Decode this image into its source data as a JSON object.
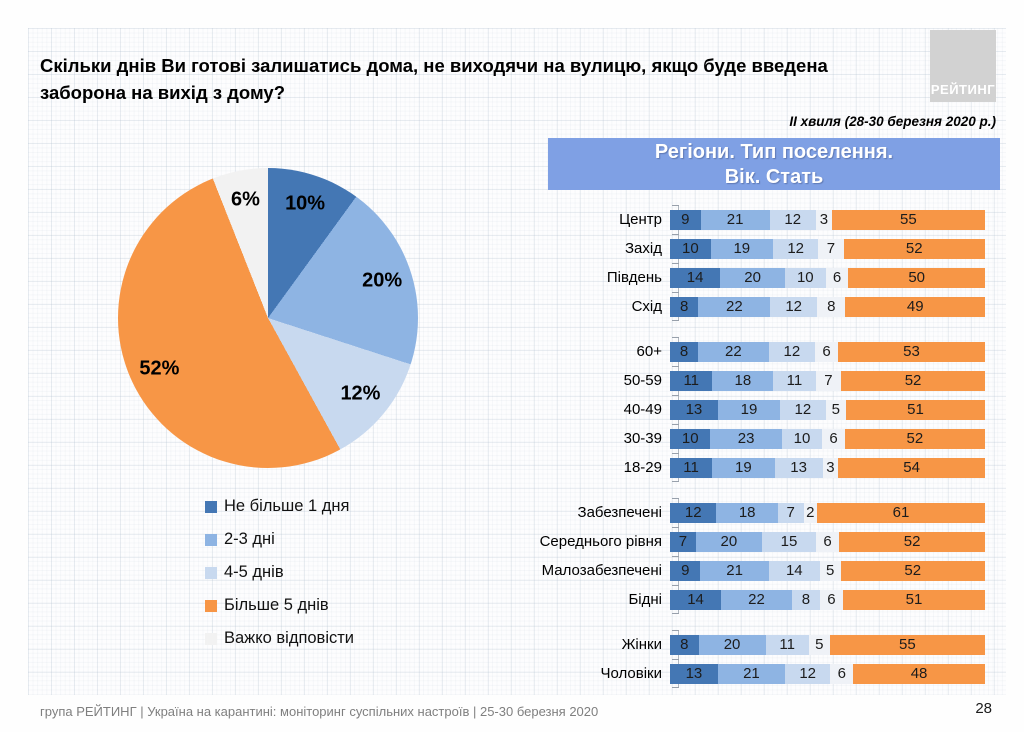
{
  "slide": {
    "title": "Скільки днів Ви готові залишатись дома, не виходячи на вулицю, якщо буде введена заборона на вихід з дому?",
    "wave_label": "ІІ хвиля (28-30 березня 2020 р.)",
    "panel_title_line1": "Регіони. Тип поселення.",
    "panel_title_line2": "Вік. Стать",
    "logo_text": "РЕЙТИНГ",
    "footer": "група РЕЙТИНГ  |  Україна на карантині: моніторинг суспільних настроїв  |  25-30 березня 2020",
    "page_number": "28"
  },
  "colors": {
    "dark_blue": "#4477b4",
    "medium_blue": "#8eb4e3",
    "light_blue": "#c8d9ef",
    "orange": "#f79646",
    "white_gray": "#f2f2f2",
    "bar_white_gray": "#eff2f7",
    "banner_blue": "#7fa0e4",
    "logo_gray": "#d2d2d2"
  },
  "chart_data": [
    {
      "type": "pie",
      "title": "",
      "labels": [
        "Не більше 1 дня",
        "2-3 дні",
        "4-5 днів",
        "Більше 5 днів",
        "Важко відповісти"
      ],
      "values": [
        10,
        20,
        12,
        52,
        6
      ],
      "display_labels": [
        "10%",
        "20%",
        "12%",
        "52%",
        "6%"
      ],
      "colors": [
        "#4477b4",
        "#8eb4e3",
        "#c8d9ef",
        "#f79646",
        "#f2f2f2"
      ],
      "start_angle_deg": 0,
      "direction": "clockwise",
      "legend_position": "below-left"
    },
    {
      "type": "bar",
      "stacked": true,
      "orientation": "horizontal",
      "xlim": [
        0,
        100
      ],
      "grid": false,
      "segment_series": [
        "Не більше 1 дня",
        "2-3 дні",
        "4-5 днів",
        "Важко відповісти",
        "Більше 5 днів"
      ],
      "segment_colors": [
        "#4477b4",
        "#8eb4e3",
        "#c8d9ef",
        "#eff2f7",
        "#f79646"
      ],
      "groups": [
        {
          "name": "regions",
          "rows": [
            {
              "label": "Центр",
              "values": [
                9,
                21,
                12,
                3,
                55
              ]
            },
            {
              "label": "Захід",
              "values": [
                10,
                19,
                12,
                7,
                52
              ]
            },
            {
              "label": "Південь",
              "values": [
                14,
                20,
                10,
                6,
                50
              ]
            },
            {
              "label": "Схід",
              "values": [
                8,
                22,
                12,
                8,
                49
              ]
            }
          ]
        },
        {
          "name": "age",
          "rows": [
            {
              "label": "60+",
              "values": [
                8,
                22,
                12,
                6,
                53
              ]
            },
            {
              "label": "50-59",
              "values": [
                11,
                18,
                11,
                7,
                52
              ]
            },
            {
              "label": "40-49",
              "values": [
                13,
                19,
                12,
                5,
                51
              ]
            },
            {
              "label": "30-39",
              "values": [
                10,
                23,
                10,
                6,
                52
              ]
            },
            {
              "label": "18-29",
              "values": [
                11,
                19,
                13,
                3,
                54
              ]
            }
          ]
        },
        {
          "name": "income",
          "rows": [
            {
              "label": "Забезпечені",
              "values": [
                12,
                18,
                7,
                2,
                61
              ]
            },
            {
              "label": "Середнього рівня",
              "values": [
                7,
                20,
                15,
                6,
                52
              ]
            },
            {
              "label": "Малозабезпечені",
              "values": [
                9,
                21,
                14,
                5,
                52
              ]
            },
            {
              "label": "Бідні",
              "values": [
                14,
                22,
                8,
                6,
                51
              ]
            }
          ]
        },
        {
          "name": "gender",
          "rows": [
            {
              "label": "Жінки",
              "values": [
                8,
                20,
                11,
                5,
                55
              ]
            },
            {
              "label": "Чоловіки",
              "values": [
                13,
                21,
                12,
                6,
                48
              ]
            }
          ]
        }
      ]
    }
  ]
}
